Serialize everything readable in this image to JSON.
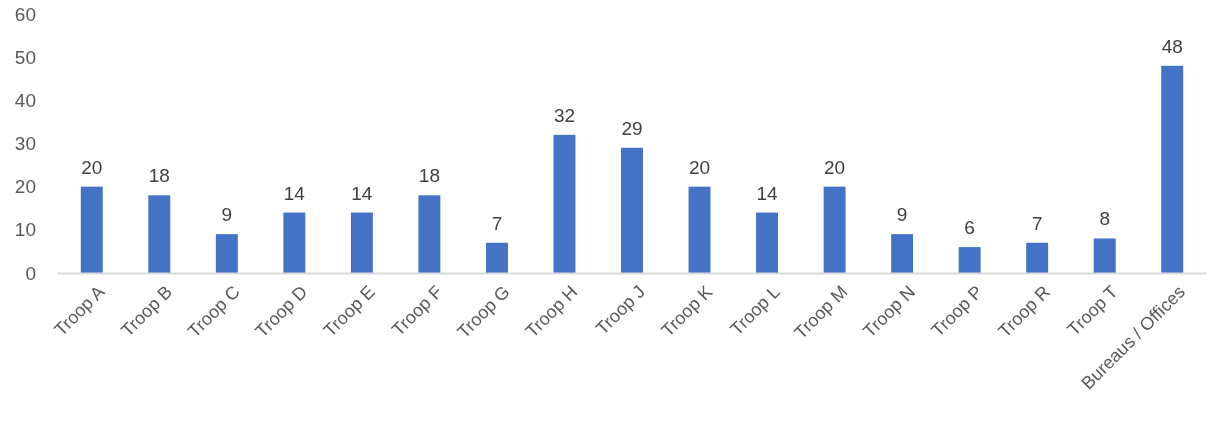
{
  "chart_data": {
    "type": "bar",
    "categories": [
      "Troop A",
      "Troop B",
      "Troop C",
      "Troop D",
      "Troop E",
      "Troop F",
      "Troop G",
      "Troop H",
      "Troop J",
      "Troop K",
      "Troop L",
      "Troop M",
      "Troop N",
      "Troop P",
      "Troop R",
      "Troop T",
      "Bureaus / Offices"
    ],
    "values": [
      20,
      18,
      9,
      14,
      14,
      18,
      7,
      32,
      29,
      20,
      14,
      20,
      9,
      6,
      7,
      8,
      48
    ],
    "color": "#4472c4",
    "ylim": [
      0,
      60
    ],
    "yticks": [
      0,
      10,
      20,
      30,
      40,
      50,
      60
    ],
    "data_labels": true,
    "grid": false
  }
}
